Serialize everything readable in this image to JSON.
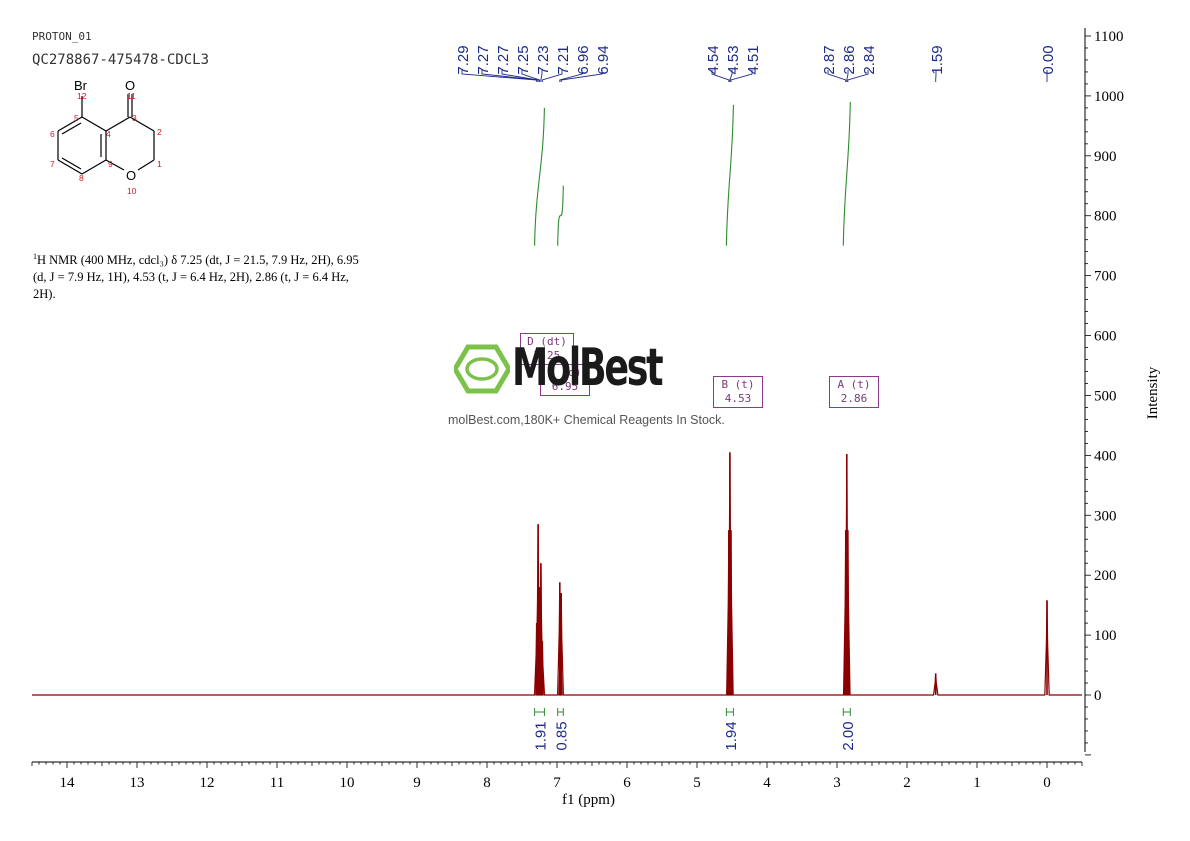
{
  "header": {
    "experiment": "PROTON_01",
    "sample": "QC278867-475478-CDCL3"
  },
  "structure": {
    "atoms": {
      "br": "Br",
      "o_ketone": "O",
      "o_ring": "O"
    },
    "numbers": [
      "12",
      "11",
      "5",
      "4",
      "3",
      "2",
      "6",
      "7",
      "9",
      "1",
      "8",
      "10"
    ]
  },
  "description": {
    "line1": "H NMR (400 MHz, cdcl₃) δ 7.25 (dt, J = 21.5, 7.9 Hz, 2H), 6.95",
    "line2": "(d, J = 7.9 Hz, 1H), 4.53 (t, J = 6.4 Hz, 2H), 2.86 (t, J = 6.4 Hz,",
    "line3": "2H).",
    "sup": "1"
  },
  "watermark": {
    "brand": "MolBest",
    "tagline": "molBest.com,180K+ Chemical Reagents In Stock."
  },
  "multiplets": [
    {
      "label": "D (dt)",
      "value": "7.25"
    },
    {
      "label": "C (d)",
      "value": "6.95"
    },
    {
      "label": "B (t)",
      "value": "4.53"
    },
    {
      "label": "A (t)",
      "value": "2.86"
    }
  ],
  "chart_data": {
    "type": "line",
    "xlabel": "f1 (ppm)",
    "ylabel": "Intensity",
    "xlim": [
      14.5,
      -0.5
    ],
    "ylim": [
      -110,
      1110
    ],
    "x_ticks": [
      14,
      13,
      12,
      11,
      10,
      9,
      8,
      7,
      6,
      5,
      4,
      3,
      2,
      1,
      0
    ],
    "y_ticks": [
      0,
      100,
      200,
      300,
      400,
      500,
      600,
      700,
      800,
      900,
      1000,
      1100
    ],
    "peak_labels": [
      {
        "group": 1,
        "values": [
          "7.29",
          "7.27",
          "7.27",
          "7.25",
          "7.23",
          "7.21",
          "6.96",
          "6.94"
        ]
      },
      {
        "group": 2,
        "values": [
          "4.54",
          "4.53",
          "4.51"
        ]
      },
      {
        "group": 3,
        "values": [
          "2.87",
          "2.86",
          "2.84"
        ]
      },
      {
        "group": 4,
        "values": [
          "1.59"
        ]
      },
      {
        "group": 5,
        "values": [
          "0.00"
        ]
      }
    ],
    "peaks": [
      {
        "ppm": 7.29,
        "height": 120
      },
      {
        "ppm": 7.27,
        "height": 285
      },
      {
        "ppm": 7.25,
        "height": 180
      },
      {
        "ppm": 7.23,
        "height": 220
      },
      {
        "ppm": 7.21,
        "height": 90
      },
      {
        "ppm": 6.96,
        "height": 188
      },
      {
        "ppm": 6.94,
        "height": 170
      },
      {
        "ppm": 4.545,
        "height": 275
      },
      {
        "ppm": 4.53,
        "height": 405
      },
      {
        "ppm": 4.515,
        "height": 275
      },
      {
        "ppm": 2.875,
        "height": 275
      },
      {
        "ppm": 2.86,
        "height": 402
      },
      {
        "ppm": 2.845,
        "height": 275
      },
      {
        "ppm": 1.59,
        "height": 36
      },
      {
        "ppm": 0.0,
        "height": 158
      }
    ],
    "integrations": [
      {
        "ppm": 7.25,
        "value": "1.91",
        "range": [
          7.32,
          7.18
        ],
        "curve": [
          750,
          980
        ]
      },
      {
        "ppm": 6.95,
        "value": "0.85",
        "range": [
          6.99,
          6.91
        ],
        "curve": [
          750,
          850
        ]
      },
      {
        "ppm": 4.53,
        "value": "1.94",
        "range": [
          4.58,
          4.48
        ],
        "curve": [
          750,
          985
        ]
      },
      {
        "ppm": 2.86,
        "value": "2.00",
        "range": [
          2.91,
          2.81
        ],
        "curve": [
          750,
          990
        ]
      }
    ],
    "colors": {
      "spectrum": "#8b0000",
      "axis": "#000000",
      "integral": "#2e8b2e",
      "peak_label": "#1c2a8c",
      "multiplet": "#8b3a8b",
      "logo": "#7cc24a"
    }
  }
}
